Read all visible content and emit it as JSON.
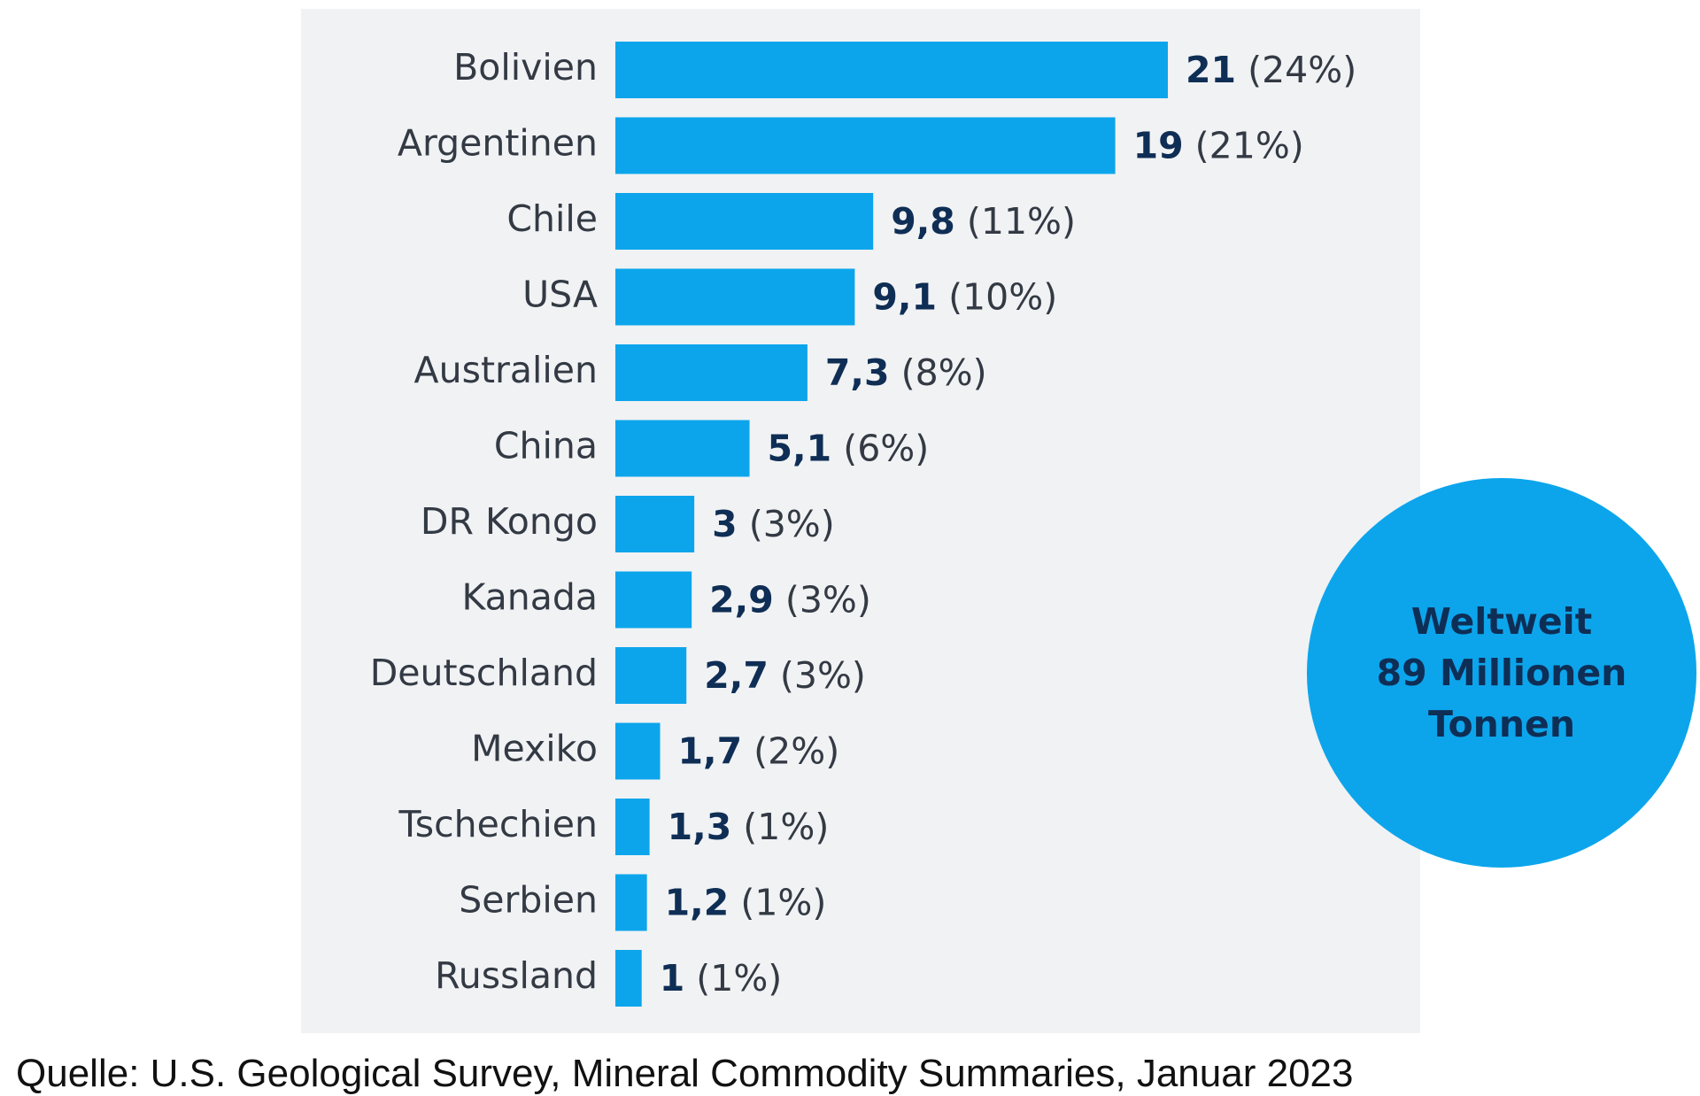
{
  "chart_data": {
    "type": "bar",
    "orientation": "horizontal",
    "categories": [
      "Bolivien",
      "Argentinen",
      "Chile",
      "USA",
      "Australien",
      "China",
      "DR Kongo",
      "Kanada",
      "Deutschland",
      "Mexiko",
      "Tschechien",
      "Serbien",
      "Russland"
    ],
    "values": [
      21,
      19,
      9.8,
      9.1,
      7.3,
      5.1,
      3,
      2.9,
      2.7,
      1.7,
      1.3,
      1.2,
      1
    ],
    "value_labels": [
      "21",
      "19",
      "9,8",
      "9,1",
      "7,3",
      "5,1",
      "3",
      "2,9",
      "2,7",
      "1,7",
      "1,3",
      "1,2",
      "1"
    ],
    "percent_labels": [
      "(24%)",
      "(21%)",
      "(11%)",
      "(10%)",
      "(8%)",
      "(6%)",
      "(3%)",
      "(3%)",
      "(3%)",
      "(2%)",
      "(1%)",
      "(1%)",
      "(1%)"
    ],
    "xlim": [
      0,
      21
    ],
    "grid": false,
    "bar_color": "#0ca5ec",
    "value_color": "#0f2e55",
    "label_color": "#333a44",
    "background_color": "#f1f2f4"
  },
  "total_badge": {
    "line1": "Weltweit",
    "line2": "89 Millionen",
    "line3": "Tonnen",
    "color": "#0ca5ec"
  },
  "source_text": "Quelle: U.S. Geological Survey, Mineral Commodity Summaries, Januar 2023"
}
